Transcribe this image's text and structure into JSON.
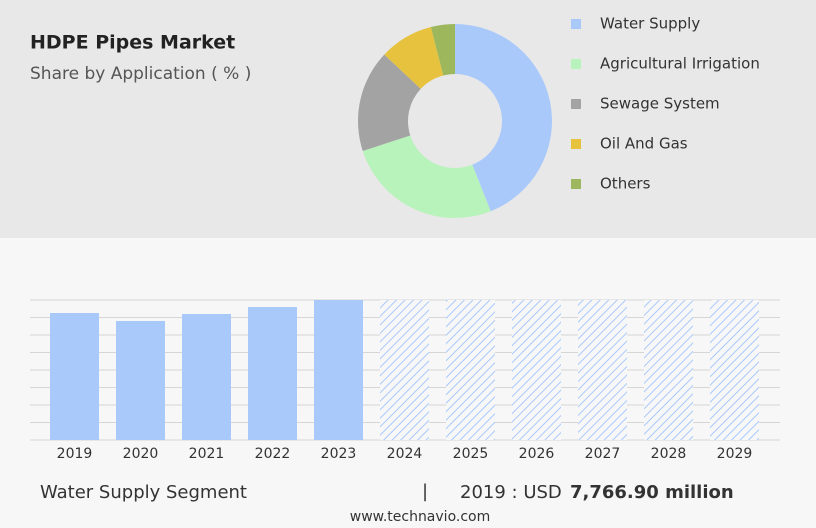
{
  "chart_data": [
    {
      "type": "pie",
      "title": "HDPE Pipes Market",
      "subtitle": "Share by Application ( % )",
      "categories": [
        "Water Supply",
        "Agricultural Irrigation",
        "Sewage System",
        "Oil And Gas",
        "Others"
      ],
      "values": [
        44,
        26,
        17,
        9,
        4
      ],
      "colors": [
        "#a9c9fb",
        "#b8f3bb",
        "#a3a3a3",
        "#e6c23e",
        "#9cb75c"
      ]
    },
    {
      "type": "bar",
      "categories": [
        "2019",
        "2020",
        "2021",
        "2022",
        "2023",
        "2024",
        "2025",
        "2026",
        "2027",
        "2028",
        "2029"
      ],
      "values": [
        7766.9,
        7278,
        7706,
        8134,
        8562,
        null,
        null,
        null,
        null,
        null,
        null
      ],
      "color": "#a9c9fb"
    }
  ],
  "summary": {
    "segment": "Water Supply Segment",
    "separator": "|",
    "year": "2019 : USD",
    "value": "7,766.90 million"
  },
  "source": "www.technavio.com"
}
